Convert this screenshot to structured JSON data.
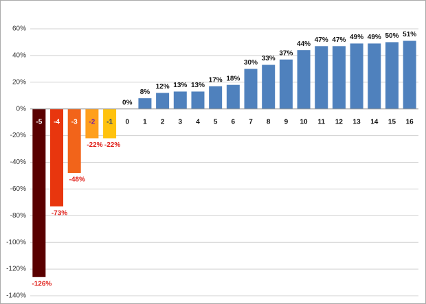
{
  "chart_data": {
    "type": "bar",
    "categories": [
      "-5",
      "-4",
      "-3",
      "-2",
      "-1",
      "0",
      "1",
      "2",
      "3",
      "4",
      "5",
      "6",
      "7",
      "8",
      "9",
      "10",
      "11",
      "12",
      "13",
      "14",
      "15",
      "16"
    ],
    "values": [
      -126,
      -73,
      -48,
      -22,
      -22,
      0,
      8,
      12,
      13,
      13,
      17,
      18,
      30,
      33,
      37,
      44,
      47,
      47,
      49,
      49,
      50,
      51
    ],
    "value_labels": [
      "-126%",
      "-73%",
      "-48%",
      "-22%",
      "-22%",
      "0%",
      "8%",
      "12%",
      "13%",
      "13%",
      "17%",
      "18%",
      "30%",
      "33%",
      "37%",
      "44%",
      "47%",
      "47%",
      "49%",
      "49%",
      "50%",
      "51%"
    ],
    "colors": [
      "#5a0000",
      "#e8360e",
      "#f2641a",
      "#ff9f1c",
      "#ffc20e",
      "#4f81bd",
      "#4f81bd",
      "#4f81bd",
      "#4f81bd",
      "#4f81bd",
      "#4f81bd",
      "#4f81bd",
      "#4f81bd",
      "#4f81bd",
      "#4f81bd",
      "#4f81bd",
      "#4f81bd",
      "#4f81bd",
      "#4f81bd",
      "#4f81bd",
      "#4f81bd",
      "#4f81bd"
    ],
    "ylim": [
      -140,
      60
    ],
    "yticks": [
      {
        "value": 60,
        "label": "60%"
      },
      {
        "value": 40,
        "label": "40%"
      },
      {
        "value": 20,
        "label": "20%"
      },
      {
        "value": 0,
        "label": "0%"
      },
      {
        "value": -20,
        "label": "-20%"
      },
      {
        "value": -40,
        "label": "-40%"
      },
      {
        "value": -60,
        "label": "-60%"
      },
      {
        "value": -80,
        "label": "-80%"
      },
      {
        "value": -100,
        "label": "-100%"
      },
      {
        "value": -120,
        "label": "-120%"
      },
      {
        "value": -140,
        "label": "-140%"
      }
    ],
    "grid": true
  }
}
